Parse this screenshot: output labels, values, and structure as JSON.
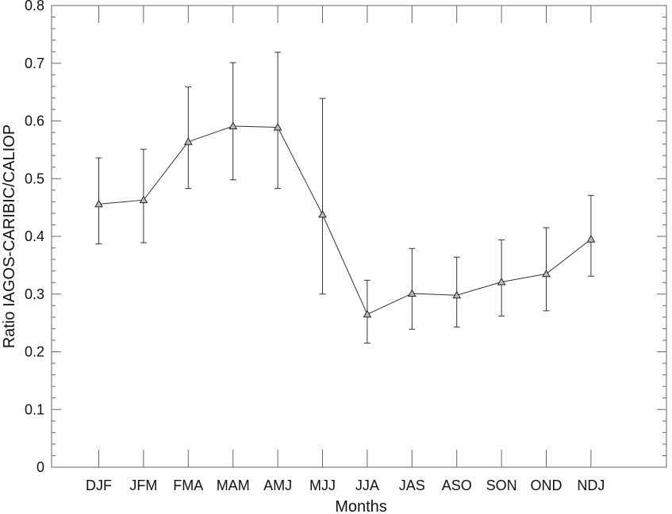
{
  "chart_data": {
    "type": "line",
    "title": "",
    "xlabel": "Months",
    "ylabel": "Ratio IAGOS-CARIBIC/CALIOP",
    "ylim": [
      0,
      0.8
    ],
    "yticks": [
      "0",
      "0.1",
      "0.2",
      "0.3",
      "0.4",
      "0.5",
      "0.6",
      "0.7",
      "0.8"
    ],
    "ytick_values": [
      0,
      0.1,
      0.2,
      0.3,
      0.4,
      0.5,
      0.6,
      0.7,
      0.8
    ],
    "grid": false,
    "categories": [
      "DJF",
      "JFM",
      "FMA",
      "MAM",
      "AMJ",
      "MJJ",
      "JJA",
      "JAS",
      "ASO",
      "SON",
      "OND",
      "NDJ"
    ],
    "series": [
      {
        "marker": "triangle",
        "values": [
          0.456,
          0.463,
          0.564,
          0.591,
          0.589,
          0.438,
          0.265,
          0.301,
          0.298,
          0.321,
          0.335,
          0.395
        ],
        "err_low": [
          0.387,
          0.389,
          0.483,
          0.498,
          0.483,
          0.3,
          0.215,
          0.239,
          0.243,
          0.262,
          0.271,
          0.331
        ],
        "err_high": [
          0.536,
          0.551,
          0.659,
          0.701,
          0.719,
          0.639,
          0.324,
          0.379,
          0.364,
          0.394,
          0.415,
          0.471
        ]
      }
    ]
  }
}
